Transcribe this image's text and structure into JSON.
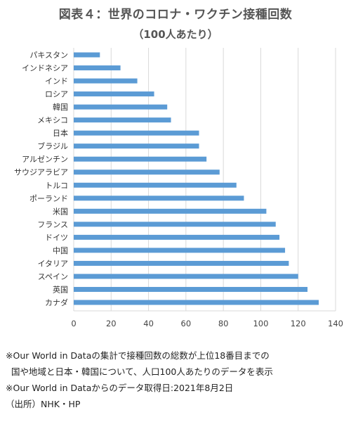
{
  "title": "図表４：世界のコロナ・ワクチン接種回数",
  "subtitle": "（100人あたり）",
  "chart_data": {
    "type": "bar",
    "orientation": "horizontal",
    "title": "図表４：世界のコロナ・ワクチン接種回数",
    "subtitle": "（100人あたり）",
    "categories": [
      "パキスタン",
      "インドネシア",
      "インド",
      "ロシア",
      "韓国",
      "メキシコ",
      "日本",
      "ブラジル",
      "アルゼンチン",
      "サウジアラビア",
      "トルコ",
      "ポーランド",
      "米国",
      "フランス",
      "ドイツ",
      "中国",
      "イタリア",
      "スペイン",
      "英国",
      "カナダ"
    ],
    "values": [
      14,
      25,
      34,
      43,
      50,
      52,
      67,
      67,
      71,
      78,
      87,
      91,
      103,
      108,
      110,
      113,
      115,
      120,
      125,
      131
    ],
    "xlim": [
      0,
      140
    ],
    "xticks": [
      0,
      20,
      40,
      60,
      80,
      100,
      120,
      140
    ],
    "grid": "vertical",
    "bar_color": "#5b9bd5",
    "grid_color": "#d9d9d9"
  },
  "notes": [
    "※Our World in Dataの集計で接種回数の総数が上位18番目までの",
    "国や地域と日本・韓国について、人口100人あたりのデータを表示",
    "※Our World in Dataからのデータ取得日:2021年8月2日",
    "（出所）NHK・HP"
  ]
}
